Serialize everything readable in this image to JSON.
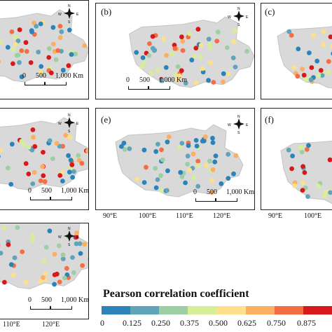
{
  "panels": [
    {
      "id": "a",
      "label": ""
    },
    {
      "id": "b",
      "label": "(b)"
    },
    {
      "id": "c",
      "label": "(c)"
    },
    {
      "id": "d",
      "label": ""
    },
    {
      "id": "e",
      "label": "(e)"
    },
    {
      "id": "f",
      "label": "(f)"
    },
    {
      "id": "g",
      "label": ""
    }
  ],
  "scale_bar": {
    "zero": "0",
    "mid": "500",
    "end": "1,000 Km"
  },
  "compass": {
    "north": "N",
    "south": "S",
    "east": "E",
    "west": "W"
  },
  "longitude_ticks": {
    "panel_e": [
      "90°E",
      "100°E",
      "110°E",
      "120°E"
    ],
    "panel_f": [
      "90°E",
      "100°E"
    ],
    "panel_g": [
      "110°E",
      "120°E"
    ]
  },
  "legend": {
    "title": "Pearson correlation coefficient",
    "labels": [
      "0",
      "0.125",
      "0.250",
      "0.375",
      "0.500",
      "0.625",
      "0.750",
      "0.875"
    ],
    "colors": [
      "#2b83ba",
      "#5fa4b9",
      "#9dcfa4",
      "#d7ee99",
      "#fee08b",
      "#fdae61",
      "#f46d43",
      "#d7191c"
    ]
  },
  "map_colors": {
    "region_fill": "#d9d9d9",
    "region_stroke": "#c4c4c4"
  }
}
